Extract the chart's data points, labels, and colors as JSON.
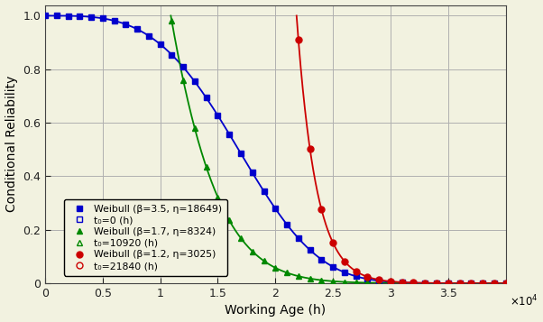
{
  "curves": [
    {
      "beta": 3.5,
      "eta": 18649,
      "t0": 0,
      "color": "#0000cc",
      "marker": "s",
      "label1": "Weibull (β=3.5, η=18649)",
      "label2": "t₀=0 (h)"
    },
    {
      "beta": 1.7,
      "eta": 8324,
      "t0": 10920,
      "color": "#008800",
      "marker": "^",
      "label1": "Weibull (β=1.7, η=8324)",
      "label2": "t₀=10920 (h)"
    },
    {
      "beta": 1.2,
      "eta": 3025,
      "t0": 21840,
      "color": "#cc0000",
      "marker": "o",
      "label1": "Weibull (β=1.2, η=3025)",
      "label2": "t₀=21840 (h)"
    }
  ],
  "xlim": [
    0,
    40000
  ],
  "ylim": [
    0,
    1.04
  ],
  "xlabel": "Working Age (h)",
  "ylabel": "Conditional Reliability",
  "background_color": "#f2f2e0",
  "grid_color": "#b0b0b0",
  "n_markers": 40,
  "yticks": [
    0,
    0.2,
    0.4,
    0.6,
    0.8,
    1.0
  ],
  "xticks": [
    0,
    5000,
    10000,
    15000,
    20000,
    25000,
    30000,
    35000
  ],
  "xticklabels": [
    "0",
    "0.5",
    "1",
    "1.5",
    "2",
    "2.5",
    "3",
    "3.5"
  ]
}
